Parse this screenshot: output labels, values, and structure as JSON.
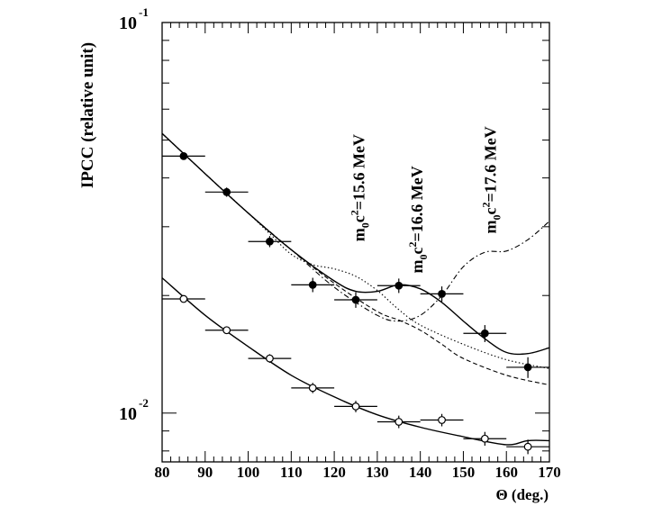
{
  "chart_data": {
    "type": "scatter",
    "title": "",
    "xlabel": "Θ (deg.)",
    "ylabel": "IPCC (relative unit)",
    "xlim": [
      80,
      170
    ],
    "ylim": [
      0.0075,
      0.1
    ],
    "yscale": "log",
    "x_ticks": [
      80,
      90,
      100,
      110,
      120,
      130,
      140,
      150,
      160,
      170
    ],
    "y_tick_labels": [
      {
        "base": "10",
        "exp": "-1",
        "value": 0.1
      },
      {
        "base": "10",
        "exp": "-2",
        "value": 0.01
      }
    ],
    "annotations": [
      {
        "base": "m",
        "sub": "0",
        "mid": "c",
        "sup": "2",
        "rest": "=15.6 MeV",
        "x_data": 127.0,
        "y_data": 0.0275
      },
      {
        "base": "m",
        "sub": "0",
        "mid": "c",
        "sup": "2",
        "rest": "=16.6 MeV",
        "x_data": 140.5,
        "y_data": 0.0228
      },
      {
        "base": "m",
        "sub": "0",
        "mid": "c",
        "sup": "2",
        "rest": "=17.6 MeV",
        "x_data": 157.5,
        "y_data": 0.0288
      }
    ],
    "series": [
      {
        "name": "filled points",
        "marker": "filled-circle",
        "x": [
          85,
          95,
          105,
          115,
          125,
          135,
          145,
          155,
          165
        ],
        "y": [
          0.0455,
          0.0368,
          0.0275,
          0.0213,
          0.0195,
          0.0212,
          0.0202,
          0.016,
          0.0131
        ],
        "xerr": [
          5,
          5,
          5,
          5,
          5,
          5,
          5,
          5,
          5
        ],
        "yerr": [
          0.001,
          0.001,
          0.0009,
          0.0009,
          0.0009,
          0.0009,
          0.0009,
          0.0008,
          0.0008
        ]
      },
      {
        "name": "open points",
        "marker": "open-circle",
        "x": [
          85,
          95,
          105,
          115,
          125,
          135,
          145,
          155,
          165
        ],
        "y": [
          0.0196,
          0.0163,
          0.0138,
          0.0116,
          0.0104,
          0.0095,
          0.0096,
          0.0086,
          0.0082
        ],
        "xerr": [
          5,
          5,
          5,
          5,
          5,
          5,
          5,
          5,
          5
        ],
        "yerr": [
          0.00035,
          0.00035,
          0.00035,
          0.00035,
          0.00035,
          0.00035,
          0.00035,
          0.00035,
          0.00035
        ]
      }
    ],
    "curves": [
      {
        "name": "fit-upper",
        "style": "solid",
        "x": [
          80,
          90,
          100,
          110,
          120,
          125,
          130,
          135,
          140,
          145,
          150,
          155,
          160,
          165,
          170
        ],
        "y": [
          0.052,
          0.041,
          0.0325,
          0.0262,
          0.0218,
          0.0205,
          0.0205,
          0.0213,
          0.0208,
          0.0192,
          0.0172,
          0.0155,
          0.0143,
          0.0142,
          0.0147
        ]
      },
      {
        "name": "fit-lower",
        "style": "solid",
        "x": [
          80,
          90,
          100,
          110,
          120,
          130,
          140,
          150,
          160,
          165,
          170
        ],
        "y": [
          0.0222,
          0.0178,
          0.0148,
          0.0125,
          0.011,
          0.0099,
          0.0092,
          0.0087,
          0.0083,
          0.0085,
          0.0085
        ]
      },
      {
        "name": "m0c2=15.6 MeV",
        "style": "dotted",
        "x": [
          80,
          90,
          100,
          105,
          110,
          115,
          120,
          125,
          130,
          135,
          140,
          150,
          160,
          170
        ],
        "y": [
          0.052,
          0.041,
          0.0325,
          0.0288,
          0.0255,
          0.024,
          0.0234,
          0.0224,
          0.0206,
          0.0184,
          0.0168,
          0.015,
          0.0137,
          0.013
        ]
      },
      {
        "name": "m0c2=16.6 MeV",
        "style": "dashed",
        "x": [
          80,
          90,
          100,
          110,
          120,
          130,
          135,
          140,
          145,
          150,
          160,
          170
        ],
        "y": [
          0.052,
          0.041,
          0.0325,
          0.0262,
          0.0215,
          0.0182,
          0.0173,
          0.0163,
          0.015,
          0.0138,
          0.0125,
          0.0118
        ]
      },
      {
        "name": "m0c2=17.6 MeV",
        "style": "dash-dot",
        "x": [
          80,
          90,
          100,
          110,
          120,
          130,
          135,
          140,
          145,
          150,
          155,
          160,
          165,
          170
        ],
        "y": [
          0.052,
          0.041,
          0.0325,
          0.0262,
          0.021,
          0.0178,
          0.0172,
          0.0178,
          0.02,
          0.0237,
          0.0258,
          0.026,
          0.0278,
          0.031
        ]
      }
    ]
  }
}
